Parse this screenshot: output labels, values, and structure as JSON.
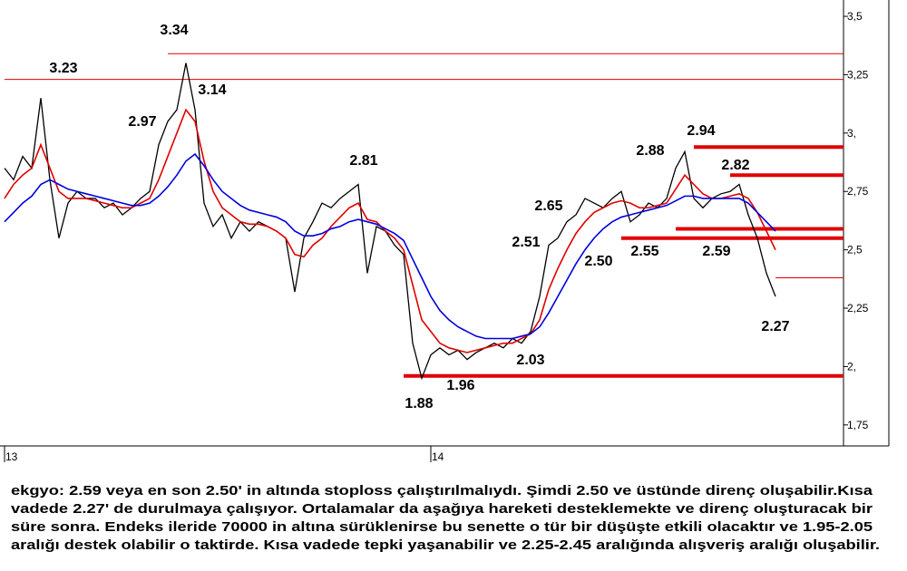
{
  "chart_data": {
    "type": "line",
    "categories": [
      "13",
      null,
      null,
      null,
      null,
      null,
      null,
      null,
      null,
      null,
      null,
      null,
      null,
      null,
      null,
      null,
      null,
      null,
      null,
      null,
      null,
      null,
      null,
      null,
      null,
      null,
      null,
      null,
      null,
      null,
      null,
      null,
      null,
      null,
      null,
      null,
      null,
      null,
      null,
      null,
      null,
      null,
      null,
      null,
      null,
      null,
      null,
      "14",
      null,
      null,
      null,
      null,
      null,
      null,
      null,
      null,
      null,
      null,
      null,
      null,
      null,
      null,
      null,
      null,
      null,
      null,
      null,
      null,
      null,
      null,
      null,
      null,
      null,
      null,
      null,
      null,
      null,
      null,
      null,
      null,
      null,
      null,
      null,
      null,
      null,
      null
    ],
    "series": [
      {
        "color": "#000000",
        "values": [
          2.85,
          2.8,
          2.9,
          2.85,
          3.15,
          2.8,
          2.55,
          2.7,
          2.75,
          2.72,
          2.72,
          2.68,
          2.7,
          2.65,
          2.68,
          2.72,
          2.75,
          2.95,
          3.05,
          3.1,
          3.3,
          3.1,
          2.7,
          2.6,
          2.65,
          2.55,
          2.62,
          2.58,
          2.62,
          2.6,
          2.58,
          2.55,
          2.32,
          2.55,
          2.62,
          2.7,
          2.68,
          2.72,
          2.75,
          2.78,
          2.4,
          2.6,
          2.58,
          2.52,
          2.48,
          2.1,
          1.95,
          2.05,
          2.08,
          2.05,
          2.07,
          2.03,
          2.06,
          2.08,
          2.1,
          2.08,
          2.12,
          2.1,
          2.15,
          2.3,
          2.52,
          2.55,
          2.62,
          2.65,
          2.72,
          2.7,
          2.68,
          2.72,
          2.75,
          2.62,
          2.65,
          2.7,
          2.68,
          2.72,
          2.85,
          2.92,
          2.72,
          2.68,
          2.72,
          2.74,
          2.75,
          2.78,
          2.65,
          2.55,
          2.4,
          2.3
        ]
      },
      {
        "color": "#e00000",
        "values": [
          2.72,
          2.78,
          2.82,
          2.85,
          2.95,
          2.85,
          2.75,
          2.72,
          2.72,
          2.72,
          2.71,
          2.7,
          2.69,
          2.68,
          2.68,
          2.7,
          2.72,
          2.8,
          2.9,
          3.0,
          3.1,
          3.05,
          2.88,
          2.75,
          2.68,
          2.65,
          2.62,
          2.61,
          2.61,
          2.6,
          2.58,
          2.55,
          2.48,
          2.47,
          2.52,
          2.55,
          2.6,
          2.64,
          2.68,
          2.7,
          2.63,
          2.62,
          2.58,
          2.55,
          2.5,
          2.35,
          2.2,
          2.15,
          2.1,
          2.08,
          2.07,
          2.06,
          2.07,
          2.08,
          2.09,
          2.1,
          2.1,
          2.12,
          2.14,
          2.2,
          2.33,
          2.42,
          2.5,
          2.57,
          2.62,
          2.66,
          2.68,
          2.7,
          2.71,
          2.7,
          2.68,
          2.68,
          2.69,
          2.7,
          2.76,
          2.82,
          2.78,
          2.74,
          2.72,
          2.72,
          2.73,
          2.74,
          2.72,
          2.66,
          2.58,
          2.5
        ]
      },
      {
        "color": "#0000e0",
        "values": [
          2.62,
          2.66,
          2.7,
          2.73,
          2.78,
          2.8,
          2.78,
          2.76,
          2.75,
          2.74,
          2.73,
          2.72,
          2.71,
          2.7,
          2.69,
          2.69,
          2.7,
          2.73,
          2.77,
          2.82,
          2.88,
          2.91,
          2.86,
          2.8,
          2.75,
          2.72,
          2.69,
          2.67,
          2.66,
          2.65,
          2.64,
          2.62,
          2.58,
          2.56,
          2.56,
          2.57,
          2.59,
          2.6,
          2.62,
          2.63,
          2.62,
          2.61,
          2.59,
          2.57,
          2.54,
          2.46,
          2.38,
          2.3,
          2.24,
          2.2,
          2.17,
          2.15,
          2.13,
          2.12,
          2.12,
          2.12,
          2.12,
          2.13,
          2.14,
          2.17,
          2.23,
          2.3,
          2.37,
          2.44,
          2.5,
          2.55,
          2.59,
          2.62,
          2.64,
          2.65,
          2.66,
          2.67,
          2.68,
          2.69,
          2.71,
          2.73,
          2.73,
          2.72,
          2.72,
          2.72,
          2.72,
          2.72,
          2.7,
          2.66,
          2.62,
          2.58
        ]
      }
    ],
    "ylim": [
      1.66,
      3.57
    ],
    "yticks": [
      {
        "value": 3.5,
        "label": "3,5"
      },
      {
        "value": 3.25,
        "label": "3,25"
      },
      {
        "value": 3,
        "label": "3,"
      },
      {
        "value": 2.75,
        "label": "2,75"
      },
      {
        "value": 2.5,
        "label": "2,5"
      },
      {
        "value": 2.25,
        "label": "2,25"
      },
      {
        "value": 2,
        "label": "2,"
      },
      {
        "value": 1.75,
        "label": "1,75"
      }
    ],
    "levels": [
      {
        "value": 3.34,
        "from": 18,
        "style": "thin"
      },
      {
        "value": 3.23,
        "from": 0,
        "style": "thin"
      },
      {
        "value": 2.94,
        "from": 76,
        "style": "thick"
      },
      {
        "value": 2.82,
        "from": 80,
        "style": "thick"
      },
      {
        "value": 2.59,
        "from": 74,
        "style": "thick"
      },
      {
        "value": 2.55,
        "from": 68,
        "style": "thick"
      },
      {
        "value": 2.38,
        "from": 85,
        "style": "thin"
      },
      {
        "value": 1.96,
        "from": 44,
        "style": "thick"
      }
    ],
    "level_color": "#e00000",
    "annotations": [
      "3.34",
      "3.23",
      "3.14",
      "2.97",
      "2.81",
      "2.94",
      "2.88",
      "2.82",
      "2.65",
      "2.51",
      "2.50",
      "2.55",
      "2.59",
      "2.27",
      "2.03",
      "1.96",
      "1.88"
    ]
  },
  "commentary": [
    "ekgyo: 2.59 veya en son 2.50' in altında stoploss çalıştırılmalıydı. Şimdi 2.50 ve üstünde direnç oluşabilir.Kısa",
    "vadede 2.27' de durulmaya çalışıyor. Ortalamalar da aşağıya hareketi desteklemekte ve direnç oluşturacak bir",
    "süre sonra. Endeks ileride 70000 in altına sürüklenirse bu senette o tür bir düşüşte etkili olacaktır ve 1.95-2.05",
    "aralığı destek olabilir o taktirde. Kısa vadede tepki yaşanabilir ve 2.25-2.45 aralığında alışveriş aralığı oluşabilir."
  ]
}
